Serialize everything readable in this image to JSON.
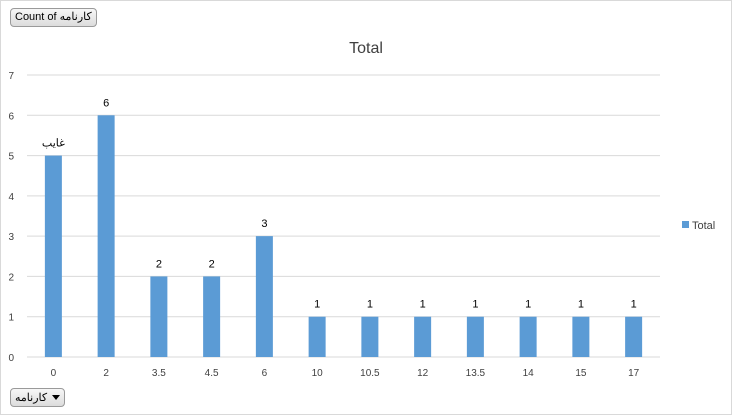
{
  "field_buttons": {
    "value_field": "Count of کارنامه",
    "axis_field": "کارنامه"
  },
  "chart_data": {
    "type": "bar",
    "title": "Total",
    "categories": [
      "0",
      "2",
      "3.5",
      "4.5",
      "6",
      "10",
      "10.5",
      "12",
      "13.5",
      "14",
      "15",
      "17"
    ],
    "series": [
      {
        "name": "Total",
        "values": [
          5,
          6,
          2,
          2,
          3,
          1,
          1,
          1,
          1,
          1,
          1,
          1
        ],
        "color": "#5b9bd5"
      }
    ],
    "data_labels": [
      "غایب",
      "6",
      "2",
      "2",
      "3",
      "1",
      "1",
      "1",
      "1",
      "1",
      "1",
      "1"
    ],
    "y_ticks": [
      "0",
      "1",
      "2",
      "3",
      "4",
      "5",
      "6",
      "7"
    ],
    "ylim": [
      0,
      7
    ],
    "grid": true,
    "legend_position": "right"
  }
}
